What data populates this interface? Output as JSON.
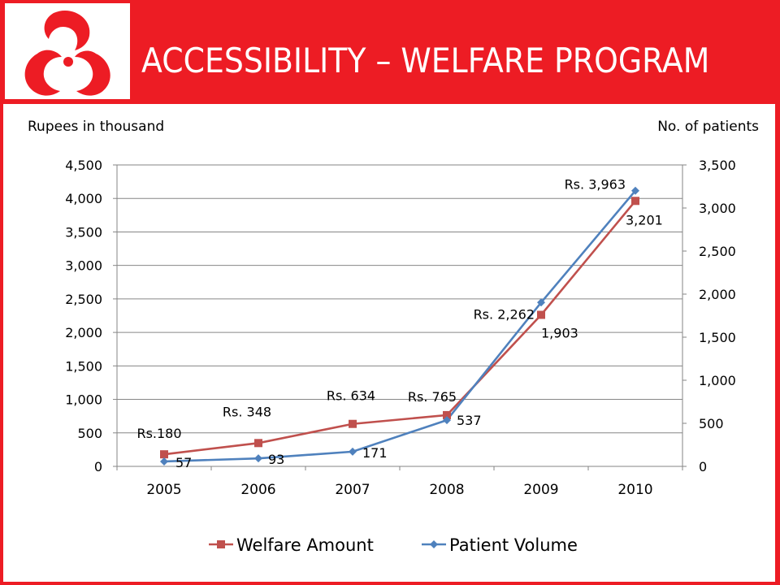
{
  "header": {
    "title": "ACCESSIBILITY – WELFARE PROGRAM",
    "logo_icon": "three-swirl-logo-icon"
  },
  "colors": {
    "brand_red": "#ed1c24",
    "welfare_series": "#c0504d",
    "patient_series": "#4f81bd"
  },
  "chart_data": {
    "type": "line",
    "categories": [
      "2005",
      "2006",
      "2007",
      "2008",
      "2009",
      "2010"
    ],
    "y_left": {
      "label": "Rupees in thousand",
      "ylim": [
        0,
        4500
      ],
      "ticks": [
        "0",
        "500",
        "1,000",
        "1,500",
        "2,000",
        "2,500",
        "3,000",
        "3,500",
        "4,000",
        "4,500"
      ]
    },
    "y_right": {
      "label": "No. of patients",
      "ylim": [
        0,
        3500
      ],
      "ticks": [
        "0",
        "500",
        "1,000",
        "1,500",
        "2,000",
        "2,500",
        "3,000",
        "3,500"
      ]
    },
    "series": [
      {
        "name": "Welfare Amount",
        "axis": "left",
        "color": "#c0504d",
        "marker": "square",
        "values": [
          180,
          348,
          634,
          765,
          2262,
          3963
        ],
        "labels": [
          "Rs.180",
          "Rs. 348",
          "Rs. 634",
          "Rs. 765",
          "Rs. 2,262",
          "Rs. 3,963"
        ]
      },
      {
        "name": "Patient Volume",
        "axis": "right",
        "color": "#4f81bd",
        "marker": "diamond",
        "values": [
          57,
          93,
          171,
          537,
          1903,
          3201
        ],
        "labels": [
          "57",
          "93",
          "171",
          "537",
          "1,903",
          "3,201"
        ]
      }
    ],
    "grid": true,
    "legend": "bottom"
  }
}
